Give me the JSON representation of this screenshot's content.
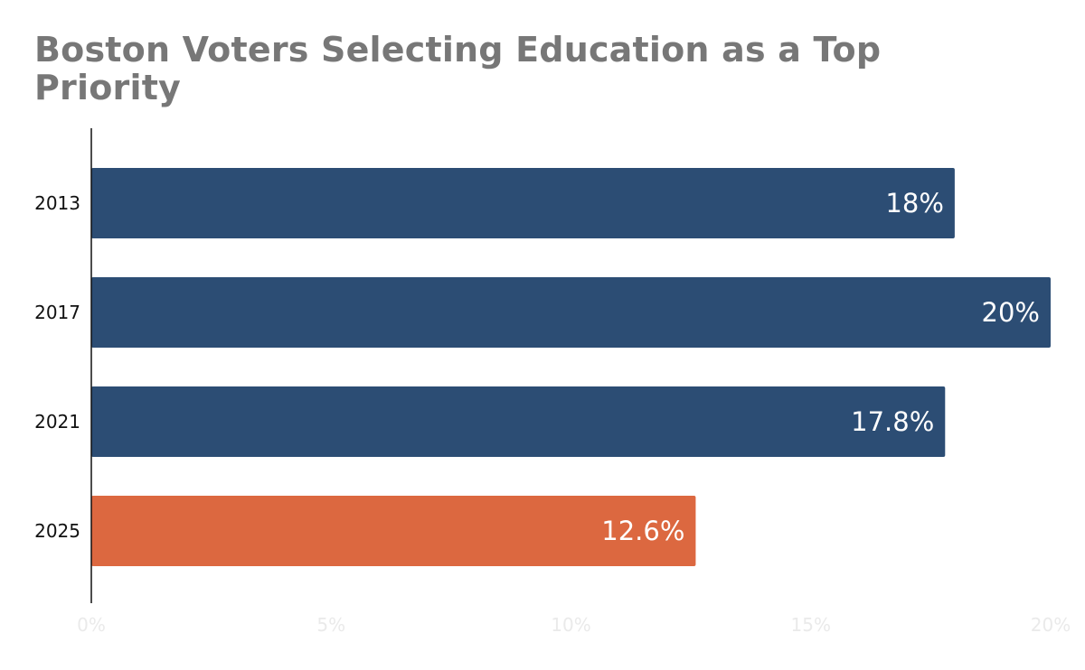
{
  "chart_data": {
    "type": "bar",
    "orientation": "horizontal",
    "title": "Boston Voters Selecting Education as a Top Priority",
    "xlabel": "",
    "ylabel": "",
    "categories": [
      "2013",
      "2017",
      "2021",
      "2025"
    ],
    "values": [
      18,
      20,
      17.8,
      12.6
    ],
    "data_labels": [
      "18%",
      "20%",
      "17.8%",
      "12.6%"
    ],
    "bar_colors": [
      "#2c4d74",
      "#2c4d74",
      "#2c4d74",
      "#dc6840"
    ],
    "xlim": [
      0,
      20
    ],
    "x_ticks": [
      0,
      5,
      10,
      15,
      20
    ],
    "x_tick_labels": [
      "0%",
      "5%",
      "10%",
      "15%",
      "20%"
    ],
    "grid": false,
    "legend": "none"
  }
}
